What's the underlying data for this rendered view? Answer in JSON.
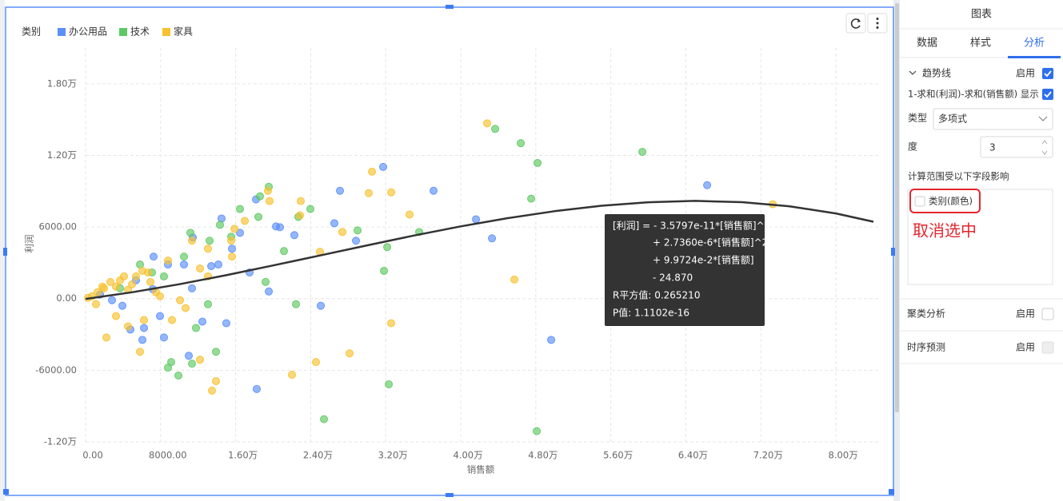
{
  "chart_data": {
    "type": "scatter",
    "legend_title": "类别",
    "x_label": "销售额",
    "y_label": "利润",
    "xlim": [
      0,
      84000
    ],
    "ylim": [
      -12000,
      21000
    ],
    "xticks": [
      {
        "value": 0,
        "label": "0.00"
      },
      {
        "value": 8000,
        "label": "8000.00"
      },
      {
        "value": 16000,
        "label": "1.60万"
      },
      {
        "value": 24000,
        "label": "2.40万"
      },
      {
        "value": 32000,
        "label": "3.20万"
      },
      {
        "value": 40000,
        "label": "4.00万"
      },
      {
        "value": 48000,
        "label": "4.80万"
      },
      {
        "value": 56000,
        "label": "5.60万"
      },
      {
        "value": 64000,
        "label": "6.40万"
      },
      {
        "value": 72000,
        "label": "7.20万"
      },
      {
        "value": 80000,
        "label": "8.00万"
      }
    ],
    "yticks": [
      {
        "value": -12000,
        "label": "-1.20万"
      },
      {
        "value": -6000,
        "label": "-6000.00"
      },
      {
        "value": 0,
        "label": "0.00"
      },
      {
        "value": 6000,
        "label": "6000.00"
      },
      {
        "value": 12000,
        "label": "1.20万"
      },
      {
        "value": 18000,
        "label": "1.80万"
      }
    ],
    "grid": true,
    "series": [
      {
        "name": "办公用品",
        "color": "#5b8ff9",
        "x": [
          31728,
          37100,
          27122,
          41623,
          43329,
          66270,
          49639,
          25075,
          18248,
          15007,
          14495,
          11429,
          19532,
          22262,
          20300,
          12452,
          7250,
          11003,
          6056,
          7165,
          3923,
          4776,
          8358,
          14158,
          16461,
          18167,
          13391,
          8785,
          2815,
          1535,
          5373,
          10491,
          15608,
          20725,
          26525,
          28828,
          17484,
          11344,
          7932,
          6227
        ],
        "values": [
          11031,
          9038,
          9038,
          6645,
          5050,
          9503,
          -3455,
          -598,
          -7575,
          -2060,
          6711,
          5117,
          598,
          5316,
          6047,
          -1927,
          3522,
          -4784,
          -3455,
          797,
          -598,
          -2592,
          -3256,
          2857,
          5515,
          8306,
          2724,
          2857,
          -133,
          332,
          1528,
          2857,
          4186,
          5980,
          6313,
          4851,
          2193,
          864,
          -1462,
          -2459
        ]
      },
      {
        "name": "技术",
        "color": "#5ec962",
        "x": [
          43668,
          46397,
          48188,
          59362,
          47507,
          48104,
          25416,
          32325,
          35567,
          31813,
          32155,
          28999,
          23967,
          22687,
          19532,
          18423,
          18593,
          16461,
          15523,
          14329,
          13220,
          11173,
          13049,
          11770,
          9894,
          9126,
          11344,
          13903,
          8785,
          22432,
          21152,
          19191,
          10491,
          7079,
          3668,
          5800,
          8358
        ],
        "values": [
          14220,
          13024,
          11363,
          12293,
          8373,
          -11097,
          -10100,
          -7177,
          5582,
          2326,
          4319,
          5715,
          7509,
          6846,
          9369,
          6846,
          8572,
          7509,
          5183,
          6180,
          4851,
          5515,
          -465,
          -2459,
          -6446,
          -5316,
          -5449,
          -4452,
          -5781,
          -465,
          3987,
          1395,
          3522,
          2193,
          864,
          2857,
          1861
        ]
      },
      {
        "name": "家具",
        "color": "#f7c12f",
        "x": [
          42816,
          73264,
          45716,
          32581,
          28146,
          24564,
          22005,
          13476,
          13903,
          30534,
          32581,
          30193,
          34542,
          27378,
          24990,
          22943,
          22858,
          19446,
          19617,
          16973,
          15864,
          15523,
          13049,
          12196,
          10661,
          9211,
          7506,
          5800,
          4520,
          2218,
          3241,
          1109,
          256,
          1962,
          3668,
          5373,
          6653,
          8785,
          11344,
          13049,
          10064,
          7932,
          15608,
          12196,
          6227,
          682,
          1279,
          1791,
          2644,
          3241,
          4094,
          4947,
          6056,
          6909,
          4520
        ],
        "values": [
          14685,
          7907,
          1595,
          -2060,
          -4585,
          -5316,
          -6379,
          -7708,
          -6911,
          10632,
          8904,
          8838,
          7044,
          5582,
          3921,
          8173,
          6977,
          9037,
          8173,
          6512,
          5847,
          4851,
          4186,
          2525,
          -797,
          -1794,
          532,
          -4452,
          -2326,
          -3256,
          -1462,
          -465,
          66,
          864,
          1528,
          1861,
          2193,
          3190,
          4851,
          1861,
          -133,
          199,
          3522,
          -5117,
          -1794,
          199,
          532,
          997,
          1395,
          997,
          1861,
          1196,
          2326,
          1395,
          731
        ]
      }
    ],
    "trendline": {
      "color": "#333333",
      "x": [
        0,
        5000,
        10000,
        15000,
        20000,
        25000,
        30000,
        35000,
        40000,
        45000,
        50000,
        55000,
        60000,
        65000,
        70000,
        75000,
        80000,
        84000
      ],
      "y": [
        -25,
        537,
        1210,
        1966,
        2777,
        3619,
        4463,
        5282,
        6051,
        6741,
        7326,
        7781,
        8076,
        8186,
        8084,
        7742,
        7135,
        6440
      ]
    },
    "tooltip": [
      "[利润] =  - 3.5797e-11*[销售额]^3",
      "+ 2.7360e-6*[销售额]^2",
      "+ 9.9724e-2*[销售额]",
      "- 24.870",
      "R平方值: 0.265210",
      "P值: 1.1102e-16"
    ]
  },
  "panel": {
    "title": "图表",
    "tabs": [
      "数据",
      "样式",
      "分析"
    ],
    "trend": {
      "label": "趋势线",
      "enable": "启用",
      "measure": "1-求和(利润)-求和(销售额) 显示",
      "type_label": "类型",
      "type_value": "多项式",
      "degree_label": "度",
      "degree_value": "3",
      "scope_label": "计算范围受以下字段影响",
      "field": "类别(颜色)"
    },
    "cluster": {
      "label": "聚类分析",
      "enable": "启用"
    },
    "forecast": {
      "label": "时序预测",
      "enable": "启用"
    }
  },
  "annotation": "取消选中"
}
